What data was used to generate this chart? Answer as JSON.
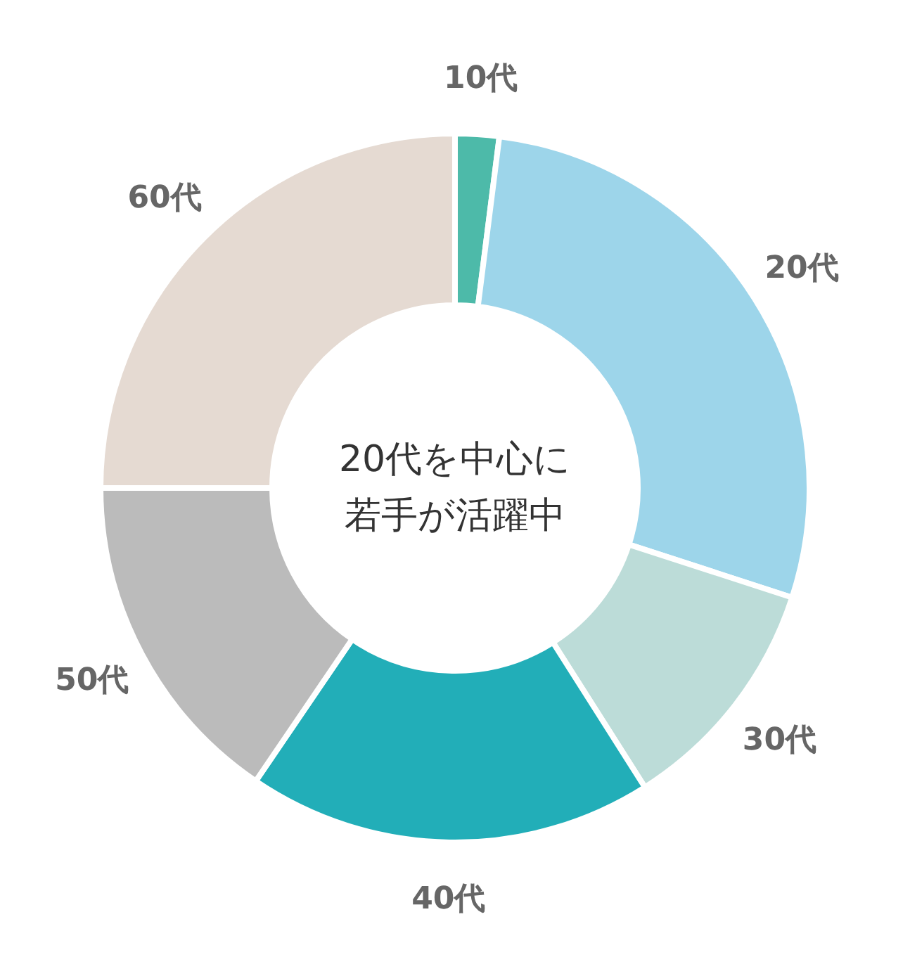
{
  "chart_data": {
    "type": "donut",
    "categories": [
      "10代",
      "20代",
      "30代",
      "40代",
      "50代",
      "60代"
    ],
    "values": [
      2,
      28,
      11,
      18.5,
      15.5,
      25
    ],
    "colors": [
      "#4dbaa9",
      "#9dd5ea",
      "#bcdcd8",
      "#22aeb8",
      "#bbbbbb",
      "#e5dad2"
    ],
    "annotations": [
      "20代を中心に",
      "若手が活躍中"
    ],
    "legend": false
  }
}
